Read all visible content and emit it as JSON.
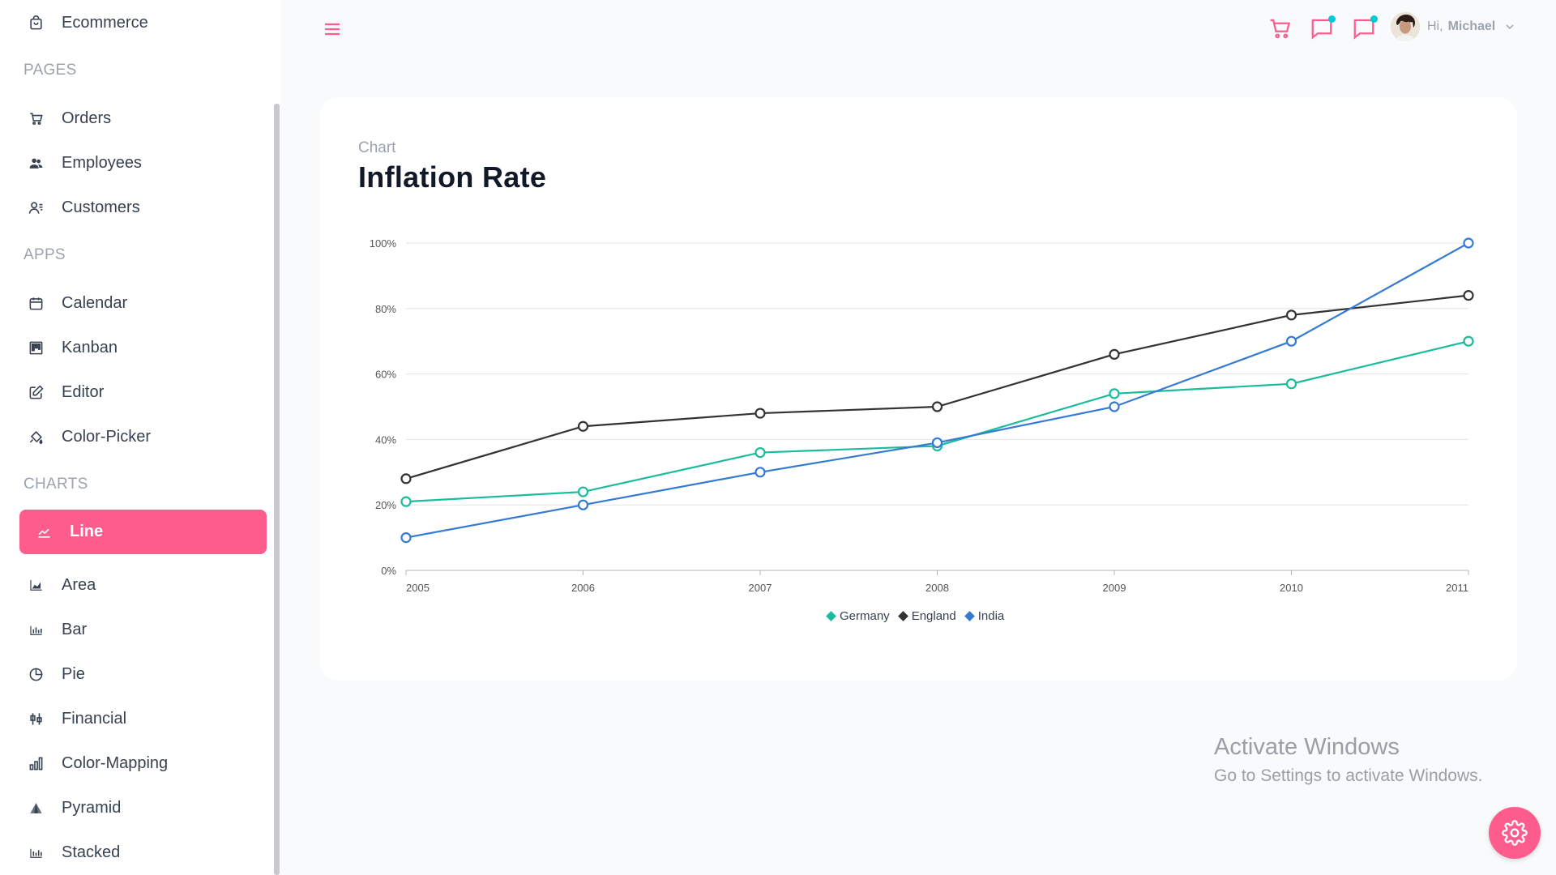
{
  "sidebar": {
    "top_item": {
      "label": "Ecommerce",
      "icon": "shopping-bag-icon"
    },
    "sections": [
      {
        "title": "PAGES"
      },
      {
        "title": "APPS"
      },
      {
        "title": "CHARTS"
      }
    ],
    "pages": [
      {
        "label": "Orders",
        "icon": "cart-icon"
      },
      {
        "label": "Employees",
        "icon": "people-icon"
      },
      {
        "label": "Customers",
        "icon": "customers-icon"
      }
    ],
    "apps": [
      {
        "label": "Calendar",
        "icon": "calendar-icon"
      },
      {
        "label": "Kanban",
        "icon": "kanban-icon"
      },
      {
        "label": "Editor",
        "icon": "edit-icon"
      },
      {
        "label": "Color-Picker",
        "icon": "paint-bucket-icon"
      }
    ],
    "charts": [
      {
        "label": "Line",
        "icon": "line-chart-icon",
        "active": true
      },
      {
        "label": "Area",
        "icon": "area-chart-icon"
      },
      {
        "label": "Bar",
        "icon": "bar-chart-icon"
      },
      {
        "label": "Pie",
        "icon": "pie-chart-icon"
      },
      {
        "label": "Financial",
        "icon": "financial-icon"
      },
      {
        "label": "Color-Mapping",
        "icon": "color-mapping-icon"
      },
      {
        "label": "Pyramid",
        "icon": "pyramid-icon"
      },
      {
        "label": "Stacked",
        "icon": "stacked-icon"
      }
    ]
  },
  "header": {
    "greeting": "Hi,",
    "user_name": "Michael",
    "icons": [
      "cart-icon",
      "chat-icon",
      "notification-icon"
    ]
  },
  "card": {
    "category": "Chart",
    "title": "Inflation Rate"
  },
  "chart_data": {
    "type": "line",
    "x": [
      "2005",
      "2006",
      "2007",
      "2008",
      "2009",
      "2010",
      "2011"
    ],
    "ylim": [
      0,
      100
    ],
    "y_ticks": [
      "0%",
      "20%",
      "40%",
      "60%",
      "80%",
      "100%"
    ],
    "grid": true,
    "legend_position": "bottom",
    "series": [
      {
        "name": "Germany",
        "color": "#1abc9c",
        "values": [
          21,
          24,
          36,
          38,
          54,
          57,
          70
        ]
      },
      {
        "name": "England",
        "color": "#333333",
        "values": [
          28,
          44,
          48,
          50,
          66,
          78,
          84
        ]
      },
      {
        "name": "India",
        "color": "#357ad3",
        "values": [
          10,
          20,
          30,
          39,
          50,
          70,
          100
        ]
      }
    ]
  },
  "watermark": {
    "title": "Activate Windows",
    "subtitle": "Go to Settings to activate Windows."
  },
  "colors": {
    "accent": "#ff5c8e",
    "dot": "#03c9d7"
  }
}
